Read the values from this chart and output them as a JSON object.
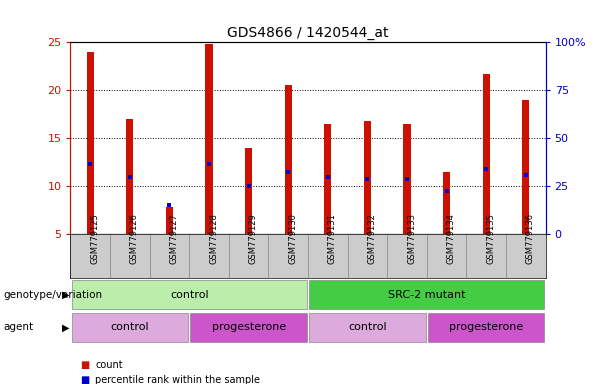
{
  "title": "GDS4866 / 1420544_at",
  "samples": [
    "GSM779125",
    "GSM779126",
    "GSM779127",
    "GSM779128",
    "GSM779129",
    "GSM779130",
    "GSM779131",
    "GSM779132",
    "GSM779133",
    "GSM779134",
    "GSM779135",
    "GSM779136"
  ],
  "counts": [
    24.0,
    17.0,
    7.8,
    24.8,
    14.0,
    20.5,
    16.5,
    16.8,
    16.5,
    11.5,
    21.7,
    19.0
  ],
  "percentile_ranks": [
    12.3,
    11.0,
    8.0,
    12.3,
    10.0,
    11.5,
    11.0,
    10.8,
    10.8,
    9.5,
    11.8,
    11.2
  ],
  "y_min": 5,
  "y_max": 25,
  "y_ticks_left": [
    5,
    10,
    15,
    20,
    25
  ],
  "y_ticks_right_vals": [
    0,
    25,
    50,
    75,
    100
  ],
  "y_right_labels": [
    "0",
    "25",
    "50",
    "75",
    "100%"
  ],
  "bar_color": "#cc1100",
  "percentile_color": "#0000cc",
  "bar_width": 0.18,
  "genotype_groups": [
    {
      "label": "control",
      "start": 0,
      "end": 6,
      "color": "#bbeeaa"
    },
    {
      "label": "SRC-2 mutant",
      "start": 6,
      "end": 12,
      "color": "#44cc44"
    }
  ],
  "agent_groups": [
    {
      "label": "control",
      "start": 0,
      "end": 3,
      "color": "#ddaadd"
    },
    {
      "label": "progesterone",
      "start": 3,
      "end": 6,
      "color": "#cc55cc"
    },
    {
      "label": "control",
      "start": 6,
      "end": 9,
      "color": "#ddaadd"
    },
    {
      "label": "progesterone",
      "start": 9,
      "end": 12,
      "color": "#cc55cc"
    }
  ],
  "legend_count_color": "#cc1100",
  "legend_percentile_color": "#0000cc",
  "genotype_label": "genotype/variation",
  "agent_label": "agent",
  "background_color": "#ffffff",
  "xlabel_bg_color": "#cccccc",
  "tick_color_left": "#cc1100",
  "tick_color_right": "#0000cc"
}
